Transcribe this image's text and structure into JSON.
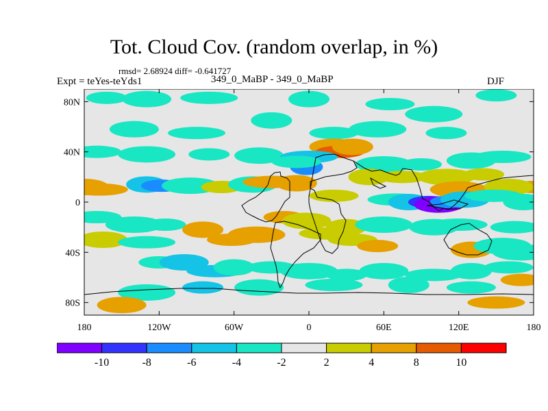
{
  "title": "Tot. Cloud Cov. (random overlap, in %)",
  "stats": "rmsd= 2.68924 diff= -0.641727",
  "experiment": "Expt = teYes-teYds1",
  "cases": "349_0_MaBP - 349_0_MaBP",
  "season": "DJF",
  "chart_data": {
    "type": "heatmap",
    "title": "Tot. Cloud Cov. (random overlap, in %)",
    "projection": "cylindrical equidistant",
    "x_range": [
      -180,
      180
    ],
    "y_range": [
      -90,
      90
    ],
    "x_ticks": [
      {
        "value": -180,
        "label": "180"
      },
      {
        "value": -120,
        "label": "120W"
      },
      {
        "value": -60,
        "label": "60W"
      },
      {
        "value": 0,
        "label": "0"
      },
      {
        "value": 60,
        "label": "60E"
      },
      {
        "value": 120,
        "label": "120E"
      },
      {
        "value": 180,
        "label": "180"
      }
    ],
    "y_ticks": [
      {
        "value": 80,
        "label": "80N"
      },
      {
        "value": 40,
        "label": "40N"
      },
      {
        "value": 0,
        "label": "0"
      },
      {
        "value": -40,
        "label": "40S"
      },
      {
        "value": -80,
        "label": "80S"
      }
    ],
    "contour_levels": [
      -10,
      -8,
      -6,
      -4,
      -2,
      2,
      4,
      8,
      10
    ],
    "colorbar_labels": [
      "-10",
      "-8",
      "-6",
      "-4",
      "-2",
      "2",
      "4",
      "8",
      "10"
    ],
    "colors": [
      "#7f00ff",
      "#3333ff",
      "#1a8cff",
      "#14c3e6",
      "#19e6c3",
      "#e6e6e6",
      "#c8cc00",
      "#e6a000",
      "#e65a00",
      "#ff0000"
    ],
    "features": [
      {
        "lon": -162,
        "lat": 83,
        "value": -3
      },
      {
        "lon": -130,
        "lat": 82,
        "value": -3
      },
      {
        "lon": -80,
        "lat": 83,
        "value": -3
      },
      {
        "lon": 0,
        "lat": 82,
        "value": -3
      },
      {
        "lon": 65,
        "lat": 78,
        "value": -3
      },
      {
        "lon": 100,
        "lat": 70,
        "value": -3
      },
      {
        "lon": 150,
        "lat": 85,
        "value": -3
      },
      {
        "lon": -140,
        "lat": 58,
        "value": -3
      },
      {
        "lon": -90,
        "lat": 55,
        "value": -3
      },
      {
        "lon": -30,
        "lat": 65,
        "value": -3
      },
      {
        "lon": 20,
        "lat": 55,
        "value": -3
      },
      {
        "lon": 55,
        "lat": 58,
        "value": -3
      },
      {
        "lon": 110,
        "lat": 55,
        "value": -3
      },
      {
        "lon": 20,
        "lat": 44,
        "value": 5
      },
      {
        "lon": 25,
        "lat": 40,
        "value": 9
      },
      {
        "lon": 35,
        "lat": 44,
        "value": 5
      },
      {
        "lon": -170,
        "lat": 40,
        "value": -3
      },
      {
        "lon": -130,
        "lat": 38,
        "value": -3
      },
      {
        "lon": -80,
        "lat": 38,
        "value": -3
      },
      {
        "lon": -40,
        "lat": 37,
        "value": -3
      },
      {
        "lon": 0,
        "lat": 36,
        "value": -5
      },
      {
        "lon": -2,
        "lat": 28,
        "value": -8
      },
      {
        "lon": -10,
        "lat": 32,
        "value": -4
      },
      {
        "lon": 60,
        "lat": 30,
        "value": -3
      },
      {
        "lon": 90,
        "lat": 30,
        "value": -3
      },
      {
        "lon": 130,
        "lat": 33,
        "value": -3
      },
      {
        "lon": 155,
        "lat": 36,
        "value": -3
      },
      {
        "lon": 48,
        "lat": 20,
        "value": 3
      },
      {
        "lon": 75,
        "lat": 20,
        "value": 3
      },
      {
        "lon": 110,
        "lat": 20,
        "value": 3
      },
      {
        "lon": 140,
        "lat": 22,
        "value": 3
      },
      {
        "lon": -180,
        "lat": 12,
        "value": 5
      },
      {
        "lon": -168,
        "lat": 10,
        "value": 4
      },
      {
        "lon": -130,
        "lat": 14,
        "value": -5
      },
      {
        "lon": -118,
        "lat": 13,
        "value": -8
      },
      {
        "lon": -95,
        "lat": 13,
        "value": -4
      },
      {
        "lon": -70,
        "lat": 12,
        "value": 3
      },
      {
        "lon": -45,
        "lat": 14,
        "value": -4
      },
      {
        "lon": -30,
        "lat": 16,
        "value": 5
      },
      {
        "lon": -10,
        "lat": 15,
        "value": 5
      },
      {
        "lon": 20,
        "lat": 5,
        "value": 3
      },
      {
        "lon": 120,
        "lat": 10,
        "value": 5
      },
      {
        "lon": 180,
        "lat": 12,
        "value": 5
      },
      {
        "lon": 160,
        "lat": 12,
        "value": 3
      },
      {
        "lon": 70,
        "lat": 2,
        "value": -4
      },
      {
        "lon": 80,
        "lat": 0,
        "value": -6
      },
      {
        "lon": 96,
        "lat": 0,
        "value": -10
      },
      {
        "lon": 104,
        "lat": -2,
        "value": -12
      },
      {
        "lon": 110,
        "lat": 0,
        "value": -8
      },
      {
        "lon": 125,
        "lat": 2,
        "value": -5
      },
      {
        "lon": 148,
        "lat": 5,
        "value": -4
      },
      {
        "lon": 172,
        "lat": 0,
        "value": -3
      },
      {
        "lon": -170,
        "lat": -12,
        "value": -3
      },
      {
        "lon": -140,
        "lat": -18,
        "value": -4
      },
      {
        "lon": -115,
        "lat": -18,
        "value": -3
      },
      {
        "lon": -165,
        "lat": -30,
        "value": 3
      },
      {
        "lon": -130,
        "lat": -32,
        "value": -3
      },
      {
        "lon": -85,
        "lat": -22,
        "value": 4
      },
      {
        "lon": -62,
        "lat": -30,
        "value": 5
      },
      {
        "lon": -42,
        "lat": -26,
        "value": 4
      },
      {
        "lon": -20,
        "lat": -12,
        "value": 5
      },
      {
        "lon": -2,
        "lat": -15,
        "value": 3
      },
      {
        "lon": 15,
        "lat": -25,
        "value": 3
      },
      {
        "lon": 30,
        "lat": -20,
        "value": 3
      },
      {
        "lon": 35,
        "lat": -30,
        "value": 3
      },
      {
        "lon": 60,
        "lat": -18,
        "value": -4
      },
      {
        "lon": 55,
        "lat": -35,
        "value": 4
      },
      {
        "lon": 100,
        "lat": -20,
        "value": -3
      },
      {
        "lon": 120,
        "lat": -18,
        "value": -4
      },
      {
        "lon": 130,
        "lat": -38,
        "value": 4
      },
      {
        "lon": 165,
        "lat": -20,
        "value": -4
      },
      {
        "lon": 155,
        "lat": -35,
        "value": -3
      },
      {
        "lon": -120,
        "lat": -48,
        "value": -4
      },
      {
        "lon": -100,
        "lat": -48,
        "value": -5
      },
      {
        "lon": -75,
        "lat": -55,
        "value": -5
      },
      {
        "lon": -60,
        "lat": -52,
        "value": -4
      },
      {
        "lon": -30,
        "lat": -52,
        "value": -3
      },
      {
        "lon": 0,
        "lat": -55,
        "value": -3
      },
      {
        "lon": 30,
        "lat": -58,
        "value": -3
      },
      {
        "lon": 60,
        "lat": -55,
        "value": -3
      },
      {
        "lon": 100,
        "lat": -58,
        "value": -3
      },
      {
        "lon": 130,
        "lat": -55,
        "value": -3
      },
      {
        "lon": 160,
        "lat": -52,
        "value": -3
      },
      {
        "lon": 170,
        "lat": -40,
        "value": -3
      },
      {
        "lon": -85,
        "lat": -68,
        "value": -5
      },
      {
        "lon": -40,
        "lat": -68,
        "value": -4
      },
      {
        "lon": 20,
        "lat": -66,
        "value": -3
      },
      {
        "lon": 80,
        "lat": -66,
        "value": -4
      },
      {
        "lon": 130,
        "lat": -68,
        "value": -3
      },
      {
        "lon": -130,
        "lat": -72,
        "value": -3
      },
      {
        "lon": 170,
        "lat": -62,
        "value": 5
      },
      {
        "lon": -150,
        "lat": -82,
        "value": 5
      },
      {
        "lon": 150,
        "lat": -80,
        "value": 5
      }
    ]
  }
}
